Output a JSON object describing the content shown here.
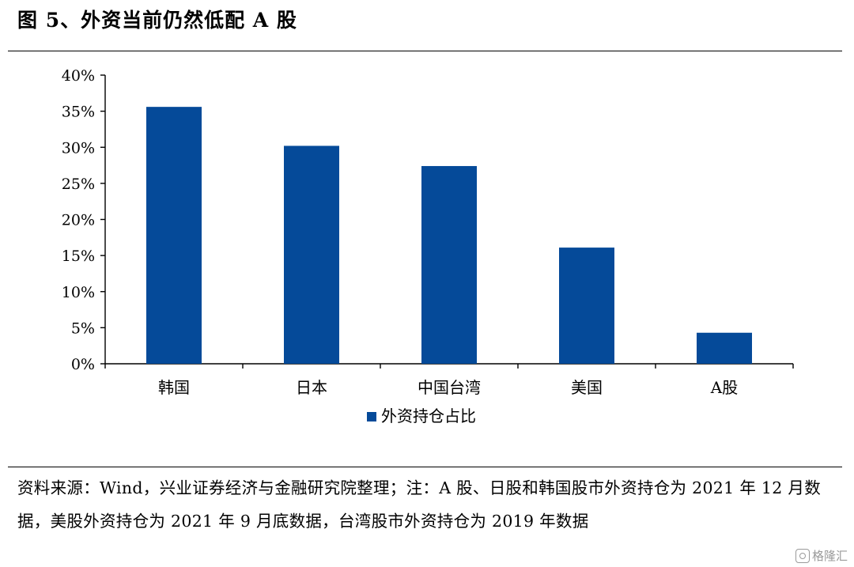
{
  "figure": {
    "title": "图 5、外资当前仍然低配 A 股",
    "source_note": "资料来源：Wind，兴业证券经济与金融研究院整理；注：A 股、日股和韩国股市外资持仓为 2021 年 12 月数据，美股外资持仓为 2021 年 9 月底数据，台湾股市外资持仓为 2019 年数据",
    "watermark": "格隆汇"
  },
  "chart_data": {
    "type": "bar",
    "categories": [
      "韩国",
      "日本",
      "中国台湾",
      "美国",
      "A股"
    ],
    "series": [
      {
        "name": "外资持仓占比",
        "values": [
          35.6,
          30.2,
          27.4,
          16.1,
          4.3
        ],
        "color": "#054a99"
      }
    ],
    "ylim": [
      0,
      40
    ],
    "yticks": [
      0,
      5,
      10,
      15,
      20,
      25,
      30,
      35,
      40
    ],
    "ytick_labels": [
      "0%",
      "5%",
      "10%",
      "15%",
      "20%",
      "25%",
      "30%",
      "35%",
      "40%"
    ],
    "grid": false,
    "legend_position": "bottom-center",
    "title": "",
    "xlabel": "",
    "ylabel": ""
  }
}
